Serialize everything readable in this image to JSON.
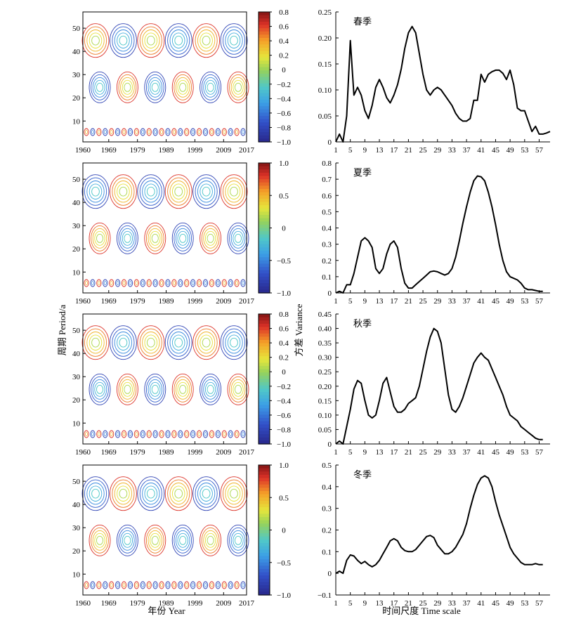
{
  "figure": {
    "left_ylabel": "周期 Period/a",
    "left_xlabel": "年份 Year",
    "right_ylabel": "方差 Variance",
    "right_xlabel": "时间尺度 Time scale"
  },
  "chart_data": [
    {
      "type": "heatmap",
      "panel": "spring-contour",
      "x_ticks": [
        "1960",
        "1969",
        "1979",
        "1989",
        "1999",
        "2009",
        "2017"
      ],
      "y_ticks": [
        "10",
        "20",
        "30",
        "40",
        "50"
      ],
      "xlim": [
        1960,
        2017
      ],
      "ylim": [
        1,
        57
      ],
      "colorbar_ticks": [
        "0.8",
        "0.6",
        "0.4",
        "0.2",
        "0",
        "−0.2",
        "−0.4",
        "−0.6",
        "−0.8",
        "−1.0"
      ],
      "colorbar_range": [
        -1.0,
        0.8
      ]
    },
    {
      "type": "line",
      "panel": "spring-variance",
      "title": "春季",
      "x_ticks": [
        "1",
        "5",
        "9",
        "13",
        "17",
        "21",
        "25",
        "29",
        "33",
        "37",
        "41",
        "45",
        "49",
        "53",
        "57"
      ],
      "xlim": [
        1,
        60
      ],
      "y_ticks": [
        "0",
        "0.05",
        "0.10",
        "0.15",
        "0.20",
        "0.25"
      ],
      "ylim": [
        0,
        0.25
      ],
      "x": [
        1,
        2,
        3,
        4,
        5,
        6,
        7,
        8,
        9,
        10,
        11,
        12,
        13,
        14,
        15,
        16,
        17,
        18,
        19,
        20,
        21,
        22,
        23,
        24,
        25,
        26,
        27,
        28,
        29,
        30,
        31,
        32,
        33,
        34,
        35,
        36,
        37,
        38,
        39,
        40,
        41,
        42,
        43,
        44,
        45,
        46,
        47,
        48,
        49,
        50,
        51,
        52,
        53,
        54,
        55,
        56,
        57,
        58,
        59,
        60
      ],
      "y": [
        0.0,
        0.015,
        0.0,
        0.05,
        0.195,
        0.09,
        0.105,
        0.09,
        0.06,
        0.045,
        0.07,
        0.105,
        0.12,
        0.105,
        0.085,
        0.075,
        0.09,
        0.11,
        0.14,
        0.18,
        0.21,
        0.222,
        0.21,
        0.17,
        0.13,
        0.1,
        0.09,
        0.1,
        0.105,
        0.1,
        0.09,
        0.08,
        0.07,
        0.055,
        0.045,
        0.04,
        0.04,
        0.045,
        0.08,
        0.08,
        0.13,
        0.115,
        0.13,
        0.135,
        0.138,
        0.138,
        0.132,
        0.12,
        0.138,
        0.11,
        0.065,
        0.06,
        0.06,
        0.04,
        0.02,
        0.03,
        0.015,
        0.015,
        0.017,
        0.02
      ]
    },
    {
      "type": "heatmap",
      "panel": "summer-contour",
      "x_ticks": [
        "1960",
        "1969",
        "1979",
        "1989",
        "1999",
        "2009",
        "2017"
      ],
      "y_ticks": [
        "10",
        "20",
        "30",
        "40",
        "50"
      ],
      "xlim": [
        1960,
        2017
      ],
      "ylim": [
        1,
        57
      ],
      "colorbar_ticks": [
        "1.0",
        "0.5",
        "0",
        "−0.5",
        "−1.0"
      ],
      "colorbar_range": [
        -1.0,
        1.0
      ]
    },
    {
      "type": "line",
      "panel": "summer-variance",
      "title": "夏季",
      "x_ticks": [
        "1",
        "5",
        "9",
        "13",
        "17",
        "21",
        "25",
        "29",
        "33",
        "37",
        "41",
        "45",
        "49",
        "53",
        "57"
      ],
      "xlim": [
        1,
        60
      ],
      "y_ticks": [
        "0",
        "0.1",
        "0.2",
        "0.3",
        "0.4",
        "0.5",
        "0.6",
        "0.7",
        "0.8"
      ],
      "ylim": [
        0,
        0.8
      ],
      "x": [
        1,
        2,
        3,
        4,
        5,
        6,
        7,
        8,
        9,
        10,
        11,
        12,
        13,
        14,
        15,
        16,
        17,
        18,
        19,
        20,
        21,
        22,
        23,
        24,
        25,
        26,
        27,
        28,
        29,
        30,
        31,
        32,
        33,
        34,
        35,
        36,
        37,
        38,
        39,
        40,
        41,
        42,
        43,
        44,
        45,
        46,
        47,
        48,
        49,
        50,
        51,
        52,
        53,
        54,
        55,
        56,
        57,
        58
      ],
      "y": [
        0.0,
        0.01,
        0.0,
        0.05,
        0.05,
        0.12,
        0.22,
        0.32,
        0.34,
        0.32,
        0.28,
        0.15,
        0.12,
        0.15,
        0.24,
        0.3,
        0.32,
        0.28,
        0.15,
        0.06,
        0.03,
        0.03,
        0.05,
        0.07,
        0.09,
        0.11,
        0.13,
        0.135,
        0.13,
        0.12,
        0.11,
        0.12,
        0.15,
        0.22,
        0.32,
        0.43,
        0.53,
        0.62,
        0.69,
        0.72,
        0.715,
        0.69,
        0.62,
        0.53,
        0.42,
        0.3,
        0.2,
        0.13,
        0.1,
        0.09,
        0.08,
        0.06,
        0.03,
        0.02,
        0.02,
        0.015,
        0.01,
        0.01
      ]
    },
    {
      "type": "heatmap",
      "panel": "autumn-contour",
      "x_ticks": [
        "1960",
        "1969",
        "1979",
        "1989",
        "1999",
        "2009",
        "2017"
      ],
      "y_ticks": [
        "10",
        "20",
        "30",
        "40",
        "50"
      ],
      "xlim": [
        1960,
        2017
      ],
      "ylim": [
        1,
        57
      ],
      "colorbar_ticks": [
        "0.8",
        "0.6",
        "0.4",
        "0.2",
        "0",
        "−0.2",
        "−0.4",
        "−0.6",
        "−0.8",
        "−1.0"
      ],
      "colorbar_range": [
        -1.0,
        0.8
      ]
    },
    {
      "type": "line",
      "panel": "autumn-variance",
      "title": "秋季",
      "x_ticks": [
        "1",
        "5",
        "9",
        "13",
        "17",
        "21",
        "25",
        "29",
        "33",
        "37",
        "41",
        "45",
        "49",
        "53",
        "57"
      ],
      "xlim": [
        1,
        60
      ],
      "y_ticks": [
        "0",
        "0.05",
        "0.10",
        "0.15",
        "0.20",
        "0.25",
        "0.30",
        "0.35",
        "0.40",
        "0.45"
      ],
      "ylim": [
        0,
        0.45
      ],
      "x": [
        1,
        2,
        3,
        4,
        5,
        6,
        7,
        8,
        9,
        10,
        11,
        12,
        13,
        14,
        15,
        16,
        17,
        18,
        19,
        20,
        21,
        22,
        23,
        24,
        25,
        26,
        27,
        28,
        29,
        30,
        31,
        32,
        33,
        34,
        35,
        36,
        37,
        38,
        39,
        40,
        41,
        42,
        43,
        44,
        45,
        46,
        47,
        48,
        49,
        50,
        51,
        52,
        53,
        54,
        55,
        56,
        57,
        58
      ],
      "y": [
        0.0,
        0.01,
        0.0,
        0.06,
        0.12,
        0.19,
        0.22,
        0.21,
        0.15,
        0.1,
        0.09,
        0.1,
        0.15,
        0.21,
        0.23,
        0.18,
        0.13,
        0.11,
        0.11,
        0.12,
        0.14,
        0.15,
        0.16,
        0.2,
        0.26,
        0.32,
        0.37,
        0.4,
        0.39,
        0.35,
        0.26,
        0.17,
        0.12,
        0.11,
        0.13,
        0.16,
        0.2,
        0.24,
        0.28,
        0.3,
        0.315,
        0.3,
        0.29,
        0.26,
        0.23,
        0.2,
        0.17,
        0.13,
        0.1,
        0.09,
        0.08,
        0.06,
        0.05,
        0.04,
        0.03,
        0.02,
        0.015,
        0.015
      ]
    },
    {
      "type": "heatmap",
      "panel": "winter-contour",
      "x_ticks": [
        "1960",
        "1969",
        "1979",
        "1989",
        "1999",
        "2009",
        "2017"
      ],
      "y_ticks": [
        "10",
        "20",
        "30",
        "40",
        "50"
      ],
      "xlim": [
        1960,
        2017
      ],
      "ylim": [
        1,
        57
      ],
      "colorbar_ticks": [
        "1.0",
        "0.5",
        "0",
        "−0.5",
        "−1.0"
      ],
      "colorbar_range": [
        -1.0,
        1.0
      ]
    },
    {
      "type": "line",
      "panel": "winter-variance",
      "title": "冬季",
      "x_ticks": [
        "1",
        "5",
        "9",
        "13",
        "17",
        "21",
        "25",
        "29",
        "33",
        "37",
        "41",
        "45",
        "49",
        "53",
        "57"
      ],
      "xlim": [
        1,
        60
      ],
      "y_ticks": [
        "−0.1",
        "0",
        "0.1",
        "0.2",
        "0.3",
        "0.4",
        "0.5"
      ],
      "ylim": [
        -0.1,
        0.5
      ],
      "x": [
        1,
        2,
        3,
        4,
        5,
        6,
        7,
        8,
        9,
        10,
        11,
        12,
        13,
        14,
        15,
        16,
        17,
        18,
        19,
        20,
        21,
        22,
        23,
        24,
        25,
        26,
        27,
        28,
        29,
        30,
        31,
        32,
        33,
        34,
        35,
        36,
        37,
        38,
        39,
        40,
        41,
        42,
        43,
        44,
        45,
        46,
        47,
        48,
        49,
        50,
        51,
        52,
        53,
        54,
        55,
        56,
        57,
        58
      ],
      "y": [
        0.0,
        0.01,
        0.0,
        0.06,
        0.085,
        0.08,
        0.06,
        0.045,
        0.055,
        0.04,
        0.03,
        0.04,
        0.06,
        0.09,
        0.12,
        0.15,
        0.16,
        0.15,
        0.12,
        0.105,
        0.1,
        0.1,
        0.11,
        0.13,
        0.15,
        0.17,
        0.175,
        0.165,
        0.13,
        0.11,
        0.09,
        0.09,
        0.1,
        0.12,
        0.15,
        0.18,
        0.23,
        0.3,
        0.36,
        0.41,
        0.44,
        0.45,
        0.44,
        0.4,
        0.33,
        0.27,
        0.22,
        0.17,
        0.12,
        0.09,
        0.07,
        0.05,
        0.04,
        0.04,
        0.04,
        0.045,
        0.04,
        0.04
      ]
    }
  ]
}
